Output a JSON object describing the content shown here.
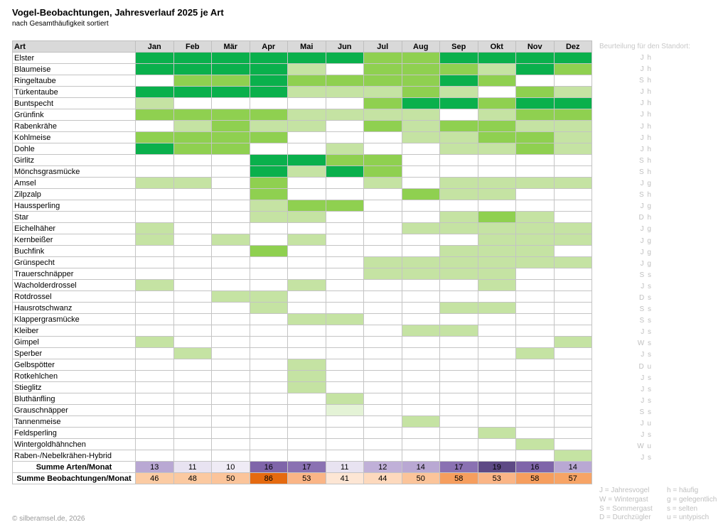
{
  "title": "Vogel-Beobachtungen, Jahresverlauf 2025 je Art",
  "subtitle": "nach Gesamthäufigkeit sortiert",
  "copyright": "© silberamsel.de, 2026",
  "colors": {
    "level_0": "#ffffff",
    "level_1": "#c5e3a3",
    "level_2": "#8fd050",
    "level_3": "#0ab04c",
    "level_4": "#e4f3d6"
  },
  "rating_header": "Beurteilung für den Standort:",
  "legend": [
    [
      "J = Jahresvogel",
      "h = häufig"
    ],
    [
      "W = Wintergast",
      "g = gelegentlich"
    ],
    [
      "S = Sommergast",
      "s = selten"
    ],
    [
      "D = Durchzügler",
      "u = untypisch"
    ]
  ],
  "chart_data": {
    "type": "heatmap",
    "title": "Vogel-Beobachtungen, Jahresverlauf 2025 je Art",
    "subtitle": "nach Gesamthäufigkeit sortiert",
    "row_header": "Art",
    "months": [
      "Jan",
      "Feb",
      "Mär",
      "Apr",
      "Mai",
      "Jun",
      "Jul",
      "Aug",
      "Sep",
      "Okt",
      "Nov",
      "Dez"
    ],
    "level_note": "0 = keine, 1 = wenige, 2 = mittel, 3 = viele, 4 = sehr wenige",
    "rows": [
      {
        "species": "Elster",
        "levels": [
          3,
          3,
          3,
          3,
          3,
          3,
          2,
          2,
          3,
          3,
          3,
          3
        ],
        "rating": "J h"
      },
      {
        "species": "Blaumeise",
        "levels": [
          3,
          3,
          3,
          3,
          1,
          0,
          2,
          2,
          2,
          1,
          3,
          2
        ],
        "rating": "J h"
      },
      {
        "species": "Ringeltaube",
        "levels": [
          0,
          2,
          2,
          3,
          2,
          2,
          2,
          2,
          3,
          2,
          0,
          0
        ],
        "rating": "S h"
      },
      {
        "species": "Türkentaube",
        "levels": [
          3,
          3,
          3,
          3,
          1,
          1,
          1,
          2,
          1,
          0,
          2,
          1
        ],
        "rating": "J h"
      },
      {
        "species": "Buntspecht",
        "levels": [
          1,
          0,
          0,
          0,
          0,
          0,
          2,
          3,
          3,
          2,
          3,
          3
        ],
        "rating": "J h"
      },
      {
        "species": "Grünfink",
        "levels": [
          2,
          2,
          2,
          2,
          1,
          1,
          1,
          1,
          0,
          1,
          2,
          2
        ],
        "rating": "J h"
      },
      {
        "species": "Rabenkrähe",
        "levels": [
          0,
          1,
          2,
          1,
          1,
          0,
          2,
          1,
          2,
          2,
          1,
          1
        ],
        "rating": "J h"
      },
      {
        "species": "Kohlmeise",
        "levels": [
          2,
          2,
          2,
          2,
          0,
          0,
          0,
          1,
          1,
          2,
          2,
          1
        ],
        "rating": "J h"
      },
      {
        "species": "Dohle",
        "levels": [
          3,
          2,
          2,
          0,
          0,
          1,
          0,
          0,
          1,
          1,
          2,
          1
        ],
        "rating": "J h"
      },
      {
        "species": "Girlitz",
        "levels": [
          0,
          0,
          0,
          3,
          3,
          2,
          2,
          0,
          0,
          0,
          0,
          0
        ],
        "rating": "S h"
      },
      {
        "species": "Mönchsgrasmücke",
        "levels": [
          0,
          0,
          0,
          3,
          1,
          3,
          2,
          0,
          0,
          0,
          0,
          0
        ],
        "rating": "S h"
      },
      {
        "species": "Amsel",
        "levels": [
          1,
          1,
          0,
          2,
          0,
          0,
          1,
          0,
          1,
          1,
          1,
          1
        ],
        "rating": "J g"
      },
      {
        "species": "Zilpzalp",
        "levels": [
          0,
          0,
          0,
          2,
          0,
          0,
          0,
          2,
          1,
          1,
          0,
          0
        ],
        "rating": "S h"
      },
      {
        "species": "Haussperling",
        "levels": [
          0,
          0,
          0,
          1,
          2,
          2,
          0,
          0,
          0,
          0,
          0,
          0
        ],
        "rating": "J g"
      },
      {
        "species": "Star",
        "levels": [
          0,
          0,
          0,
          1,
          1,
          0,
          0,
          0,
          1,
          2,
          1,
          0
        ],
        "rating": "D h"
      },
      {
        "species": "Eichelhäher",
        "levels": [
          1,
          0,
          0,
          0,
          0,
          0,
          0,
          1,
          1,
          1,
          1,
          1
        ],
        "rating": "J g"
      },
      {
        "species": "Kernbeißer",
        "levels": [
          1,
          0,
          1,
          0,
          1,
          0,
          0,
          0,
          0,
          1,
          1,
          1
        ],
        "rating": "J g"
      },
      {
        "species": "Buchfink",
        "levels": [
          0,
          0,
          0,
          2,
          0,
          0,
          0,
          0,
          1,
          1,
          1,
          0
        ],
        "rating": "J g"
      },
      {
        "species": "Grünspecht",
        "levels": [
          0,
          0,
          0,
          0,
          0,
          0,
          1,
          1,
          1,
          1,
          1,
          1
        ],
        "rating": "J g"
      },
      {
        "species": "Trauerschnäpper",
        "levels": [
          0,
          0,
          0,
          0,
          0,
          0,
          1,
          1,
          1,
          1,
          0,
          0
        ],
        "rating": "S s"
      },
      {
        "species": "Wacholderdrossel",
        "levels": [
          1,
          0,
          0,
          0,
          1,
          0,
          0,
          0,
          0,
          1,
          0,
          0
        ],
        "rating": "J s"
      },
      {
        "species": "Rotdrossel",
        "levels": [
          0,
          0,
          1,
          1,
          0,
          0,
          0,
          0,
          0,
          0,
          0,
          0
        ],
        "rating": "D s"
      },
      {
        "species": "Hausrotschwanz",
        "levels": [
          0,
          0,
          0,
          1,
          0,
          0,
          0,
          0,
          1,
          1,
          0,
          0
        ],
        "rating": "S s"
      },
      {
        "species": "Klappergrasmücke",
        "levels": [
          0,
          0,
          0,
          0,
          1,
          1,
          0,
          0,
          0,
          0,
          0,
          0
        ],
        "rating": "S s"
      },
      {
        "species": "Kleiber",
        "levels": [
          0,
          0,
          0,
          0,
          0,
          0,
          0,
          1,
          1,
          0,
          0,
          0
        ],
        "rating": "J s"
      },
      {
        "species": "Gimpel",
        "levels": [
          1,
          0,
          0,
          0,
          0,
          0,
          0,
          0,
          0,
          0,
          0,
          1
        ],
        "rating": "W s"
      },
      {
        "species": "Sperber",
        "levels": [
          0,
          1,
          0,
          0,
          0,
          0,
          0,
          0,
          0,
          0,
          1,
          0
        ],
        "rating": "J s"
      },
      {
        "species": "Gelbspötter",
        "levels": [
          0,
          0,
          0,
          0,
          1,
          0,
          0,
          0,
          0,
          0,
          0,
          0
        ],
        "rating": "D u"
      },
      {
        "species": "Rotkehlchen",
        "levels": [
          0,
          0,
          0,
          0,
          1,
          0,
          0,
          0,
          0,
          0,
          0,
          0
        ],
        "rating": "J s"
      },
      {
        "species": "Stieglitz",
        "levels": [
          0,
          0,
          0,
          0,
          1,
          0,
          0,
          0,
          0,
          0,
          0,
          0
        ],
        "rating": "J s"
      },
      {
        "species": "Bluthänfling",
        "levels": [
          0,
          0,
          0,
          0,
          0,
          1,
          0,
          0,
          0,
          0,
          0,
          0
        ],
        "rating": "J s"
      },
      {
        "species": "Grauschnäpper",
        "levels": [
          0,
          0,
          0,
          0,
          0,
          4,
          0,
          0,
          0,
          0,
          0,
          0
        ],
        "rating": "S s"
      },
      {
        "species": "Tannenmeise",
        "levels": [
          0,
          0,
          0,
          0,
          0,
          0,
          0,
          1,
          0,
          0,
          0,
          0
        ],
        "rating": "J u"
      },
      {
        "species": "Feldsperling",
        "levels": [
          0,
          0,
          0,
          0,
          0,
          0,
          0,
          0,
          0,
          1,
          0,
          0
        ],
        "rating": "J s"
      },
      {
        "species": "Wintergoldhähnchen",
        "levels": [
          0,
          0,
          0,
          0,
          0,
          0,
          0,
          0,
          0,
          0,
          1,
          0
        ],
        "rating": "W u"
      },
      {
        "species": "Raben-/Nebelkrähen-Hybrid",
        "levels": [
          0,
          0,
          0,
          0,
          0,
          0,
          0,
          0,
          0,
          0,
          0,
          1
        ],
        "rating": "J s"
      }
    ],
    "summary": [
      {
        "label": "Summe Arten/Monat",
        "values": [
          13,
          11,
          10,
          16,
          17,
          11,
          12,
          14,
          17,
          19,
          16,
          14
        ],
        "colors": [
          "#b9a8d3",
          "#e8e3f1",
          "#efebf5",
          "#7f65a9",
          "#8a71b2",
          "#e8e3f1",
          "#c0b0d8",
          "#b9a8d3",
          "#8a71b2",
          "#5e4a85",
          "#7f65a9",
          "#b9a8d3"
        ]
      },
      {
        "label": "Summe Beobachtungen/Monat",
        "values": [
          46,
          48,
          50,
          86,
          53,
          41,
          44,
          50,
          58,
          53,
          58,
          57
        ],
        "colors": [
          "#fbcba3",
          "#fbc9a0",
          "#fbc49a",
          "#e56a10",
          "#fab586",
          "#fde6d4",
          "#fdd9bd",
          "#fbc49a",
          "#f69e5e",
          "#fab586",
          "#f69e5e",
          "#f7a466"
        ]
      }
    ]
  }
}
